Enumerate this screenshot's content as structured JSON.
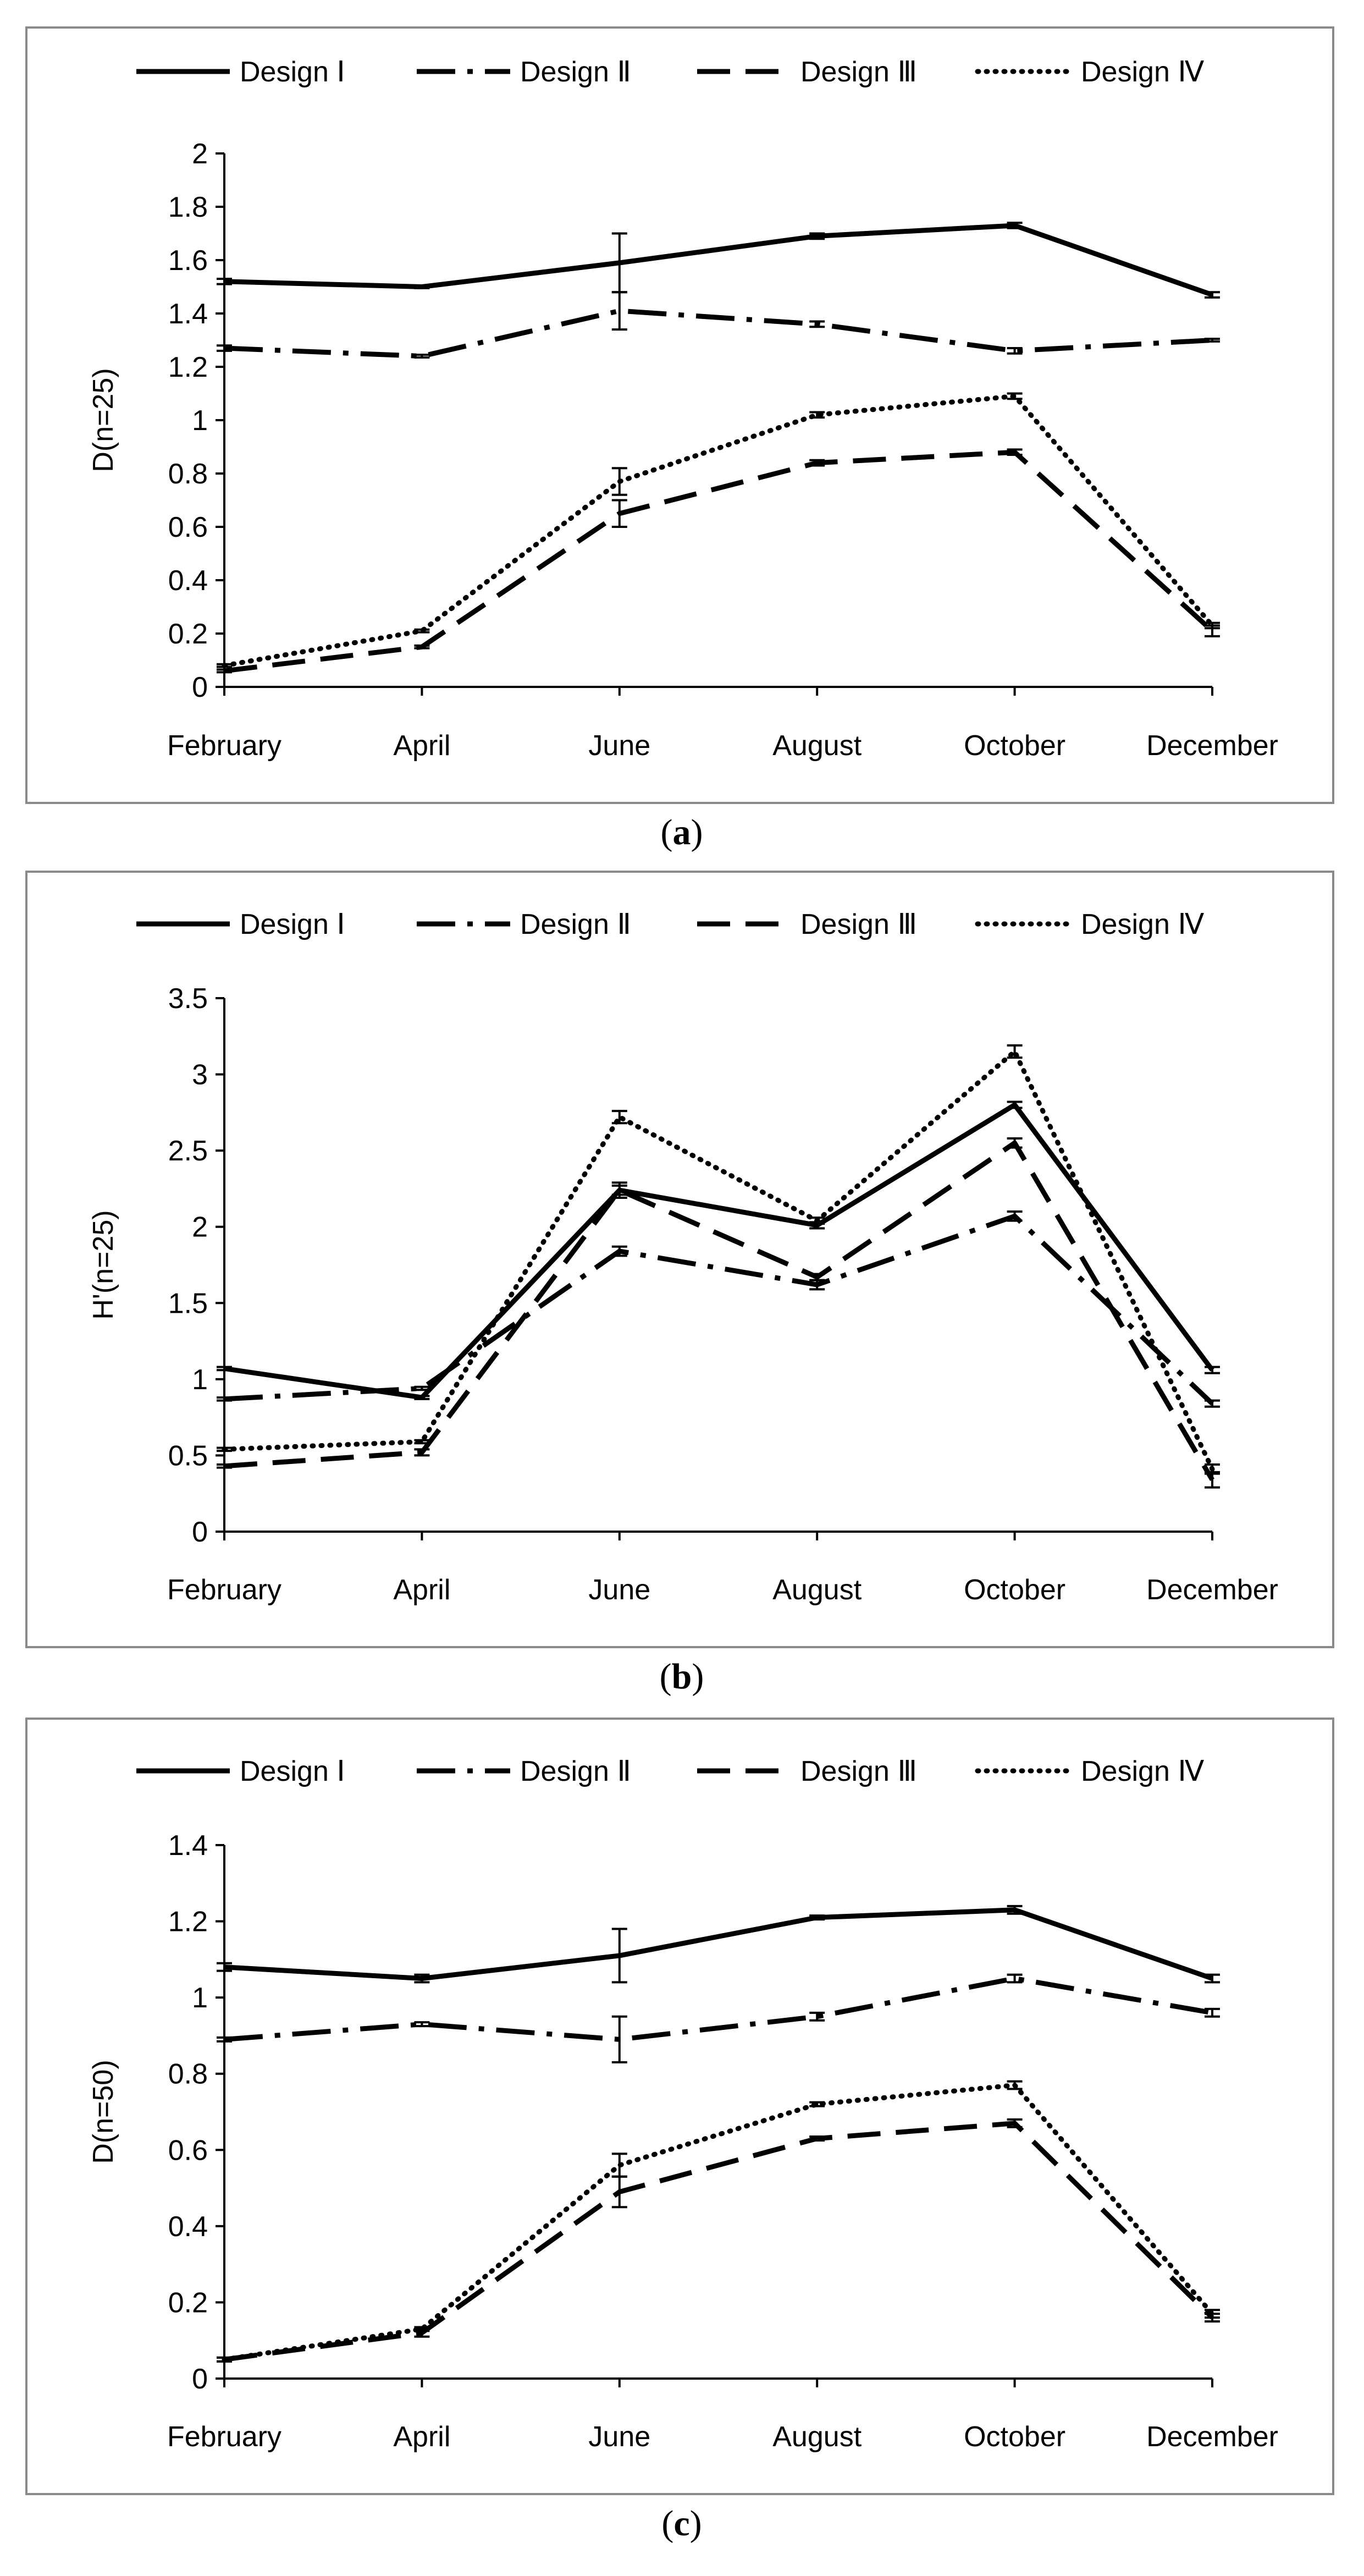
{
  "chart_data": [
    {
      "type": "line",
      "caption": "a",
      "categories": [
        "February",
        "April",
        "June",
        "August",
        "October",
        "December"
      ],
      "ylabel": "D(n=25)",
      "ylim": [
        0,
        2
      ],
      "yticks": [
        "0",
        "0.2",
        "0.4",
        "0.6",
        "0.8",
        "1",
        "1.2",
        "1.4",
        "1.6",
        "1.8",
        "2"
      ],
      "series": [
        {
          "name": "Design Ⅰ",
          "style": "solid",
          "values": [
            1.52,
            1.5,
            1.59,
            1.69,
            1.73,
            1.47
          ],
          "errors": [
            0.01,
            0.005,
            0.11,
            0.01,
            0.01,
            0.01
          ]
        },
        {
          "name": "Design Ⅱ",
          "style": "dashdot",
          "values": [
            1.27,
            1.24,
            1.41,
            1.36,
            1.26,
            1.3
          ],
          "errors": [
            0.01,
            0.005,
            0.07,
            0.01,
            0.01,
            0.005
          ]
        },
        {
          "name": "Design Ⅲ",
          "style": "dash",
          "values": [
            0.06,
            0.15,
            0.65,
            0.84,
            0.88,
            0.21
          ],
          "errors": [
            0.005,
            0.005,
            0.05,
            0.01,
            0.01,
            0.02
          ]
        },
        {
          "name": "Design Ⅳ",
          "style": "dot",
          "values": [
            0.08,
            0.21,
            0.77,
            1.02,
            1.09,
            0.23
          ],
          "errors": [
            0.005,
            0.005,
            0.05,
            0.01,
            0.01,
            0.01
          ]
        }
      ]
    },
    {
      "type": "line",
      "caption": "b",
      "categories": [
        "February",
        "April",
        "June",
        "August",
        "October",
        "December"
      ],
      "ylabel": "H'(n=25)",
      "ylim": [
        0,
        3.5
      ],
      "yticks": [
        "0",
        "0.5",
        "1",
        "1.5",
        "2",
        "2.5",
        "3",
        "3.5"
      ],
      "series": [
        {
          "name": "Design Ⅰ",
          "style": "solid",
          "values": [
            1.07,
            0.88,
            2.24,
            2.01,
            2.8,
            1.06
          ],
          "errors": [
            0.01,
            0.01,
            0.03,
            0.02,
            0.02,
            0.02
          ]
        },
        {
          "name": "Design Ⅱ",
          "style": "dashdot",
          "values": [
            0.87,
            0.94,
            1.84,
            1.62,
            2.07,
            0.84
          ],
          "errors": [
            0.01,
            0.01,
            0.03,
            0.03,
            0.03,
            0.02
          ]
        },
        {
          "name": "Design Ⅲ",
          "style": "dash",
          "values": [
            0.43,
            0.52,
            2.24,
            1.67,
            2.55,
            0.34
          ],
          "errors": [
            0.01,
            0.02,
            0.05,
            0.02,
            0.03,
            0.05
          ]
        },
        {
          "name": "Design Ⅳ",
          "style": "dot",
          "values": [
            0.54,
            0.59,
            2.72,
            2.04,
            3.15,
            0.41
          ],
          "errors": [
            0.01,
            0.01,
            0.04,
            0.02,
            0.04,
            0.03
          ]
        }
      ]
    },
    {
      "type": "line",
      "caption": "c",
      "categories": [
        "February",
        "April",
        "June",
        "August",
        "October",
        "December"
      ],
      "ylabel": "D(n=50)",
      "ylim": [
        0,
        1.4
      ],
      "yticks": [
        "0",
        "0.2",
        "0.4",
        "0.6",
        "0.8",
        "1",
        "1.2",
        "1.4"
      ],
      "series": [
        {
          "name": "Design Ⅰ",
          "style": "solid",
          "values": [
            1.08,
            1.05,
            1.11,
            1.21,
            1.23,
            1.05
          ],
          "errors": [
            0.01,
            0.01,
            0.07,
            0.005,
            0.01,
            0.01
          ]
        },
        {
          "name": "Design Ⅱ",
          "style": "dashdot",
          "values": [
            0.89,
            0.93,
            0.89,
            0.95,
            1.05,
            0.96
          ],
          "errors": [
            0.005,
            0.005,
            0.06,
            0.01,
            0.01,
            0.01
          ]
        },
        {
          "name": "Design Ⅲ",
          "style": "dash",
          "values": [
            0.05,
            0.12,
            0.49,
            0.63,
            0.67,
            0.16
          ],
          "errors": [
            0.005,
            0.01,
            0.04,
            0.005,
            0.01,
            0.01
          ]
        },
        {
          "name": "Design Ⅳ",
          "style": "dot",
          "values": [
            0.05,
            0.13,
            0.56,
            0.72,
            0.77,
            0.17
          ],
          "errors": [
            0.005,
            0.005,
            0.03,
            0.005,
            0.01,
            0.01
          ]
        }
      ]
    }
  ]
}
